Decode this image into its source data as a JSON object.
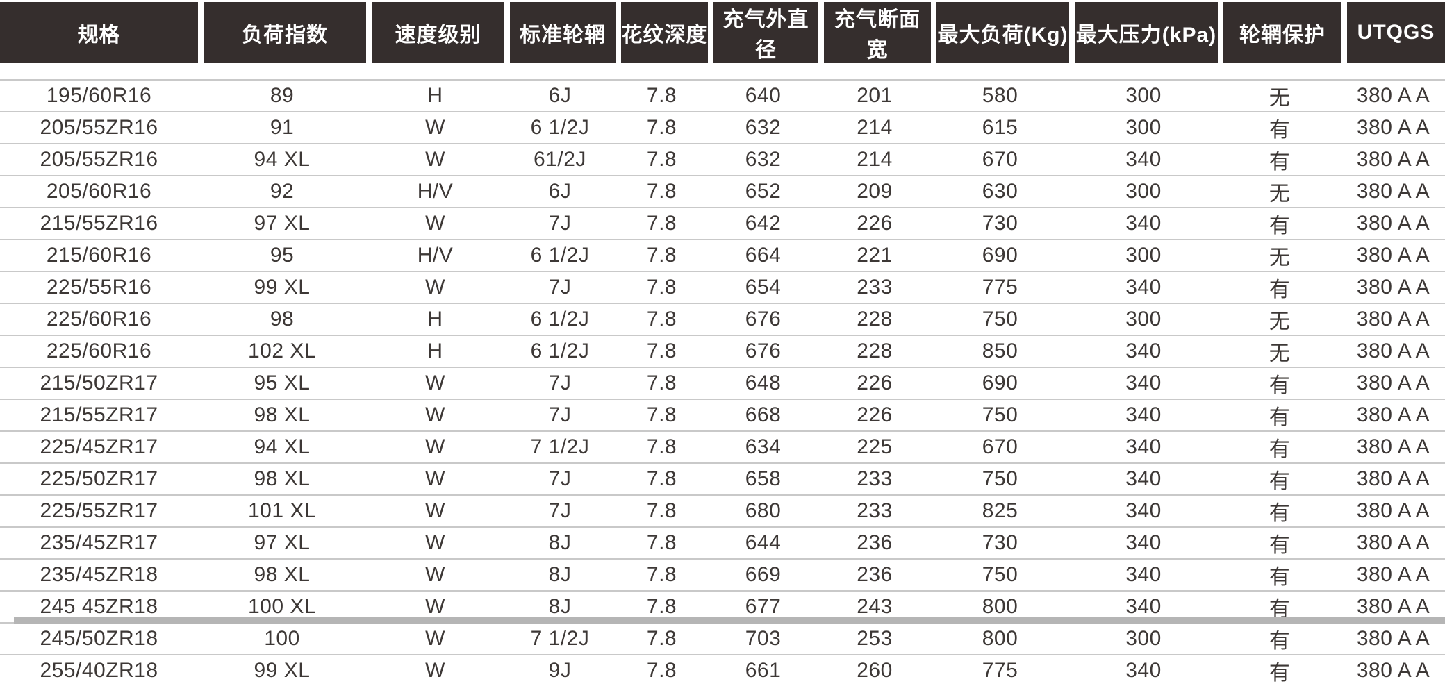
{
  "theme": {
    "header_bg": "#352e2d",
    "header_text": "#ffffff",
    "row_line": "#c9c9c9",
    "cell_text": "#3d3836",
    "bottom_bar": "#b5b5b5",
    "page_bg": "#ffffff"
  },
  "table": {
    "headers": [
      "规格",
      "负荷指数",
      "速度级别",
      "标准轮辋",
      "花纹深度",
      "充气外直径",
      "充气断面宽",
      "最大负荷(Kg)",
      "最大压力(kPa)",
      "轮辋保护",
      "UTQGS"
    ],
    "column_keys": [
      "spec",
      "load-index",
      "speed-rating",
      "standard-rim",
      "tread-depth",
      "inflated-diameter",
      "inflated-section-width",
      "max-load",
      "max-pressure",
      "rim-protection",
      "utqgs"
    ],
    "rows": [
      [
        "195/60R16",
        "89",
        "H",
        "6J",
        "7.8",
        "640",
        "201",
        "580",
        "300",
        "无",
        "380 A A"
      ],
      [
        "205/55ZR16",
        "91",
        "W",
        "6 1/2J",
        "7.8",
        "632",
        "214",
        "615",
        "300",
        "有",
        "380 A A"
      ],
      [
        "205/55ZR16",
        "94 XL",
        "W",
        "61/2J",
        "7.8",
        "632",
        "214",
        "670",
        "340",
        "有",
        "380 A A"
      ],
      [
        "205/60R16",
        "92",
        "H/V",
        "6J",
        "7.8",
        "652",
        "209",
        "630",
        "300",
        "无",
        "380 A A"
      ],
      [
        "215/55ZR16",
        "97 XL",
        "W",
        "7J",
        "7.8",
        "642",
        "226",
        "730",
        "340",
        "有",
        "380 A A"
      ],
      [
        "215/60R16",
        "95",
        "H/V",
        "6 1/2J",
        "7.8",
        "664",
        "221",
        "690",
        "300",
        "无",
        "380 A A"
      ],
      [
        "225/55R16",
        "99 XL",
        "W",
        "7J",
        "7.8",
        "654",
        "233",
        "775",
        "340",
        "有",
        "380 A A"
      ],
      [
        "225/60R16",
        "98",
        "H",
        "6 1/2J",
        "7.8",
        "676",
        "228",
        "750",
        "300",
        "无",
        "380 A A"
      ],
      [
        "225/60R16",
        "102 XL",
        "H",
        "6 1/2J",
        "7.8",
        "676",
        "228",
        "850",
        "340",
        "无",
        "380 A A"
      ],
      [
        "215/50ZR17",
        "95 XL",
        "W",
        "7J",
        "7.8",
        "648",
        "226",
        "690",
        "340",
        "有",
        "380 A A"
      ],
      [
        "215/55ZR17",
        "98 XL",
        "W",
        "7J",
        "7.8",
        "668",
        "226",
        "750",
        "340",
        "有",
        "380 A A"
      ],
      [
        "225/45ZR17",
        "94 XL",
        "W",
        "7 1/2J",
        "7.8",
        "634",
        "225",
        "670",
        "340",
        "有",
        "380 A A"
      ],
      [
        "225/50ZR17",
        "98 XL",
        "W",
        "7J",
        "7.8",
        "658",
        "233",
        "750",
        "340",
        "有",
        "380 A A"
      ],
      [
        "225/55ZR17",
        "101 XL",
        "W",
        "7J",
        "7.8",
        "680",
        "233",
        "825",
        "340",
        "有",
        "380 A A"
      ],
      [
        "235/45ZR17",
        "97 XL",
        "W",
        "8J",
        "7.8",
        "644",
        "236",
        "730",
        "340",
        "有",
        "380 A A"
      ],
      [
        "235/45ZR18",
        "98 XL",
        "W",
        "8J",
        "7.8",
        "669",
        "236",
        "750",
        "340",
        "有",
        "380 A A"
      ],
      [
        "245 45ZR18",
        "100 XL",
        "W",
        "8J",
        "7.8",
        "677",
        "243",
        "800",
        "340",
        "有",
        "380 A A"
      ],
      [
        "245/50ZR18",
        "100",
        "W",
        "7 1/2J",
        "7.8",
        "703",
        "253",
        "800",
        "300",
        "有",
        "380 A A"
      ],
      [
        "255/40ZR18",
        "99 XL",
        "W",
        "9J",
        "7.8",
        "661",
        "260",
        "775",
        "340",
        "有",
        "380 A A"
      ]
    ]
  }
}
